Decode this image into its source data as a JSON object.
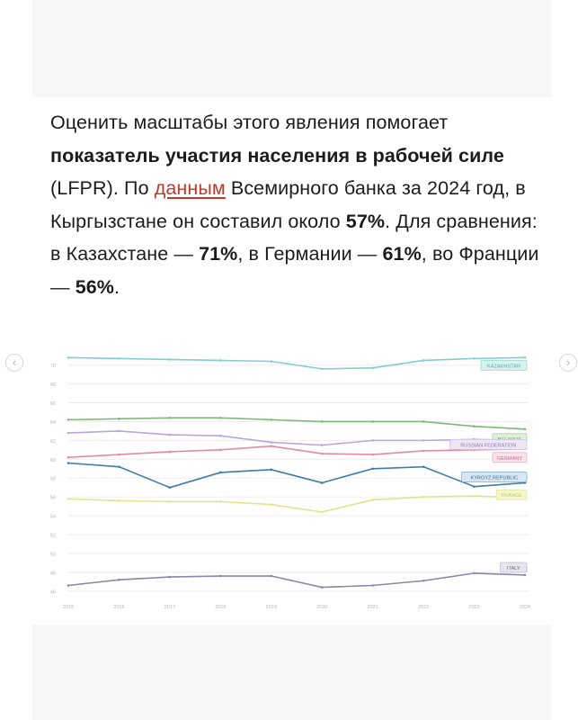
{
  "article": {
    "p1_a": "Оценить масштабы этого явления помогает ",
    "p1_bold1": "показатель участия населения в рабочей силе",
    "p1_b": " (LFPR). По ",
    "p1_link": "данным",
    "p1_c": " Всемирного банка за 2024 год, в Кыргызстане он составил около ",
    "p1_bold2": "57%",
    "p1_d": ". Для сравнения: в Казахстане — ",
    "p1_bold3": "71%",
    "p1_e": ", в Германии — ",
    "p1_bold4": "61%",
    "p1_f": ", во Франции — ",
    "p1_bold5": "56%",
    "p1_g": "."
  },
  "nav": {
    "prev_icon": "chevron-left-icon",
    "next_icon": "chevron-right-icon",
    "prev_glyph": "‹",
    "next_glyph": "›"
  },
  "chart_data": {
    "type": "line",
    "title": "",
    "xlabel": "",
    "ylabel": "",
    "x": [
      "2015",
      "2016",
      "2017",
      "2018",
      "2019",
      "2020",
      "2021",
      "2022",
      "2023",
      "2024"
    ],
    "yticks": [
      "46",
      "48",
      "50",
      "52",
      "54",
      "56",
      "58",
      "60",
      "62",
      "64",
      "66",
      "68",
      "70"
    ],
    "ylim": [
      45.5,
      71.5
    ],
    "grid": true,
    "series": [
      {
        "name": "KAZAKHSTAN",
        "color": "#7fcfcb",
        "values": [
          70.8,
          70.7,
          70.6,
          70.5,
          70.4,
          69.6,
          69.7,
          70.5,
          70.7,
          70.8
        ]
      },
      {
        "name": "BELARUS",
        "color": "#7fb77a",
        "values": [
          64.2,
          64.3,
          64.4,
          64.4,
          64.2,
          64.0,
          64.0,
          64.0,
          63.5,
          63.2
        ]
      },
      {
        "name": "RUSSIAN FEDERATION",
        "color": "#b9a7d6",
        "values": [
          62.8,
          63.0,
          62.6,
          62.5,
          61.8,
          61.5,
          62.0,
          62.0,
          62.1,
          62.0
        ]
      },
      {
        "name": "GERMANY",
        "color": "#e58aa6",
        "values": [
          60.2,
          60.5,
          60.8,
          61.0,
          61.4,
          60.6,
          60.5,
          60.9,
          61.0,
          61.1
        ]
      },
      {
        "name": "KYRGYZ REPUBLIC",
        "color": "#3f7da6",
        "values": [
          59.6,
          59.2,
          57.0,
          58.6,
          58.9,
          57.5,
          59.0,
          59.2,
          57.1,
          57.5
        ]
      },
      {
        "name": "FRANCE",
        "color": "#dde68a",
        "values": [
          55.8,
          55.6,
          55.5,
          55.5,
          55.2,
          54.4,
          55.7,
          56.0,
          56.1,
          55.9
        ]
      },
      {
        "name": "ITALY",
        "color": "#8a87a8",
        "values": [
          46.6,
          47.2,
          47.5,
          47.6,
          47.6,
          46.4,
          46.6,
          47.1,
          47.9,
          47.7
        ]
      }
    ],
    "labels": [
      {
        "name": "KAZAKHSTAN",
        "text": "KAZAKHSTAN",
        "bg": "#d9f1ef",
        "border": "#9dd9d5",
        "fg": "#5aa9a4"
      },
      {
        "name": "BELARUS",
        "text": "BELARUS",
        "bg": "#dcefd8",
        "border": "#a9d3a3",
        "fg": "#6f9c69"
      },
      {
        "name": "RUSSIAN FEDERATION",
        "text": "RUSSIAN FEDERATION",
        "bg": "#ece6f5",
        "border": "#cfc2e5",
        "fg": "#8e80a9"
      },
      {
        "name": "GERMANY",
        "text": "GERMANY",
        "bg": "#fbe1e9",
        "border": "#f0b3c6",
        "fg": "#c4718b"
      },
      {
        "name": "KYRGYZ REPUBLIC",
        "text": "KYRGYZ REPUBLIC",
        "bg": "#d7e6f0",
        "border": "#8fb7d1",
        "fg": "#3f6f93"
      },
      {
        "name": "FRANCE",
        "text": "FRANCE",
        "bg": "#f3f6cf",
        "border": "#e0e79a",
        "fg": "#c2c86c"
      },
      {
        "name": "ITALY",
        "text": "ITALY",
        "bg": "#e6e5ee",
        "border": "#bdbbd0",
        "fg": "#6e6c88"
      }
    ]
  }
}
